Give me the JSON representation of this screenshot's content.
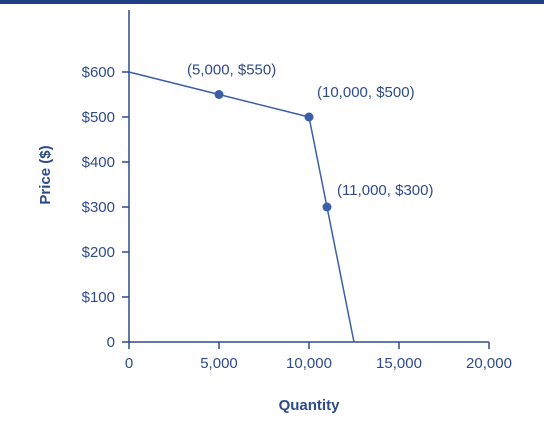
{
  "colors": {
    "accent": "#3a5fa8",
    "axis": "#2e4b8c",
    "text": "#2e4b8c",
    "topbar": "#1f3f84"
  },
  "chart_data": {
    "type": "line",
    "title": "",
    "xlabel": "Quantity",
    "ylabel": "Price ($)",
    "xlim": [
      0,
      20000
    ],
    "ylim": [
      0,
      700
    ],
    "x_ticks": [
      {
        "value": 0,
        "label": "0"
      },
      {
        "value": 5000,
        "label": "5,000"
      },
      {
        "value": 10000,
        "label": "10,000"
      },
      {
        "value": 15000,
        "label": "15,000"
      },
      {
        "value": 20000,
        "label": "20,000"
      }
    ],
    "y_ticks": [
      {
        "value": 0,
        "label": "0"
      },
      {
        "value": 100,
        "label": "$100"
      },
      {
        "value": 200,
        "label": "$200"
      },
      {
        "value": 300,
        "label": "$300"
      },
      {
        "value": 400,
        "label": "$400"
      },
      {
        "value": 500,
        "label": "$500"
      },
      {
        "value": 600,
        "label": "$600"
      }
    ],
    "series": [
      {
        "x": [
          0,
          5000,
          10000,
          11000,
          12500
        ],
        "y": [
          600,
          550,
          500,
          300,
          0
        ]
      }
    ],
    "points": [
      {
        "x": 5000,
        "y": 550,
        "label": "(5,000, $550)"
      },
      {
        "x": 10000,
        "y": 500,
        "label": "(10,000, $500)"
      },
      {
        "x": 11000,
        "y": 300,
        "label": "(11,000, $300)"
      }
    ],
    "grid": false,
    "legend": "none"
  }
}
